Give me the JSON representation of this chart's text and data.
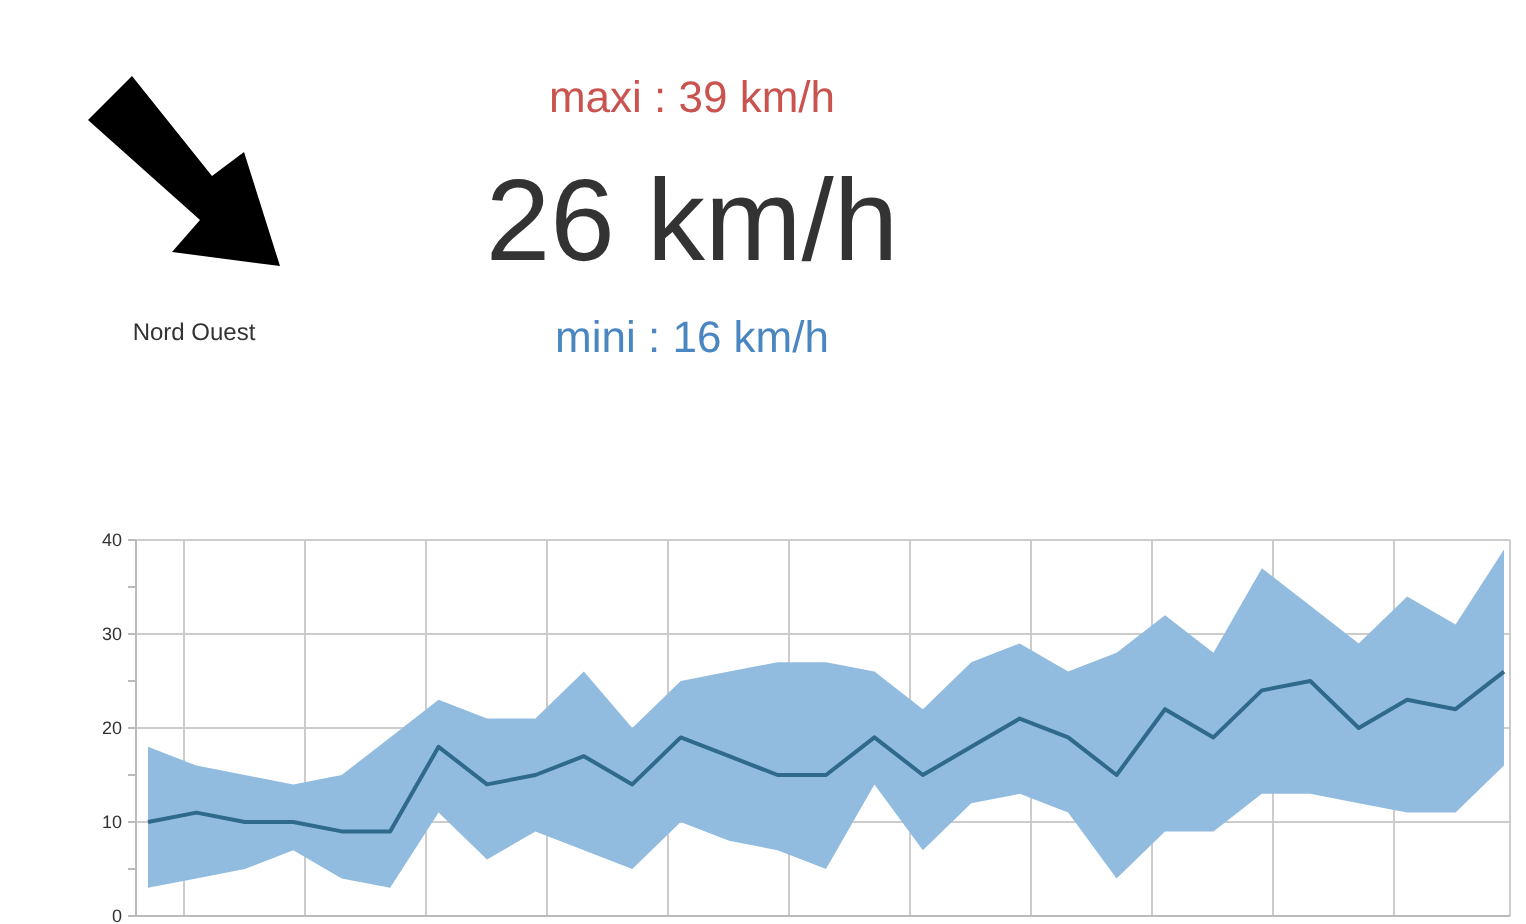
{
  "chart_data": [
    {
      "type": "other",
      "annotations": [
        "Nord Ouest",
        "maxi : 39 km/h",
        "26 km/h",
        "mini : 16 km/h"
      ],
      "colors": [
        "#333333",
        "#c9534f",
        "#333333",
        "#4a86c0"
      ]
    },
    {
      "type": "line",
      "categories": [
        null,
        null,
        null,
        null,
        null,
        null,
        null,
        null,
        null,
        null,
        null,
        null,
        null,
        null,
        null,
        null,
        null,
        null,
        null,
        null,
        null,
        null,
        null,
        null,
        null,
        null,
        null,
        null,
        null
      ],
      "series": [
        {
          "color": "#2f6a8c",
          "values": [
            10,
            11,
            10,
            10,
            9,
            9,
            18,
            14,
            15,
            17,
            14,
            19,
            17,
            15,
            15,
            19,
            15,
            18,
            21,
            19,
            15,
            22,
            19,
            24,
            25,
            20,
            23,
            22,
            26
          ],
          "upper": [
            18,
            16,
            15,
            14,
            15,
            19,
            23,
            21,
            21,
            26,
            20,
            25,
            26,
            27,
            27,
            26,
            22,
            27,
            29,
            26,
            28,
            32,
            28,
            37,
            33,
            29,
            34,
            31,
            39
          ],
          "lower": [
            3,
            4,
            5,
            7,
            4,
            3,
            11,
            6,
            9,
            7,
            5,
            10,
            8,
            7,
            5,
            14,
            7,
            12,
            13,
            11,
            4,
            9,
            9,
            13,
            13,
            12,
            11,
            11,
            16
          ]
        }
      ],
      "ylim": [
        0,
        40
      ],
      "yticks": [
        0,
        10,
        20,
        30,
        40
      ],
      "grid": true,
      "marker": "none"
    }
  ]
}
